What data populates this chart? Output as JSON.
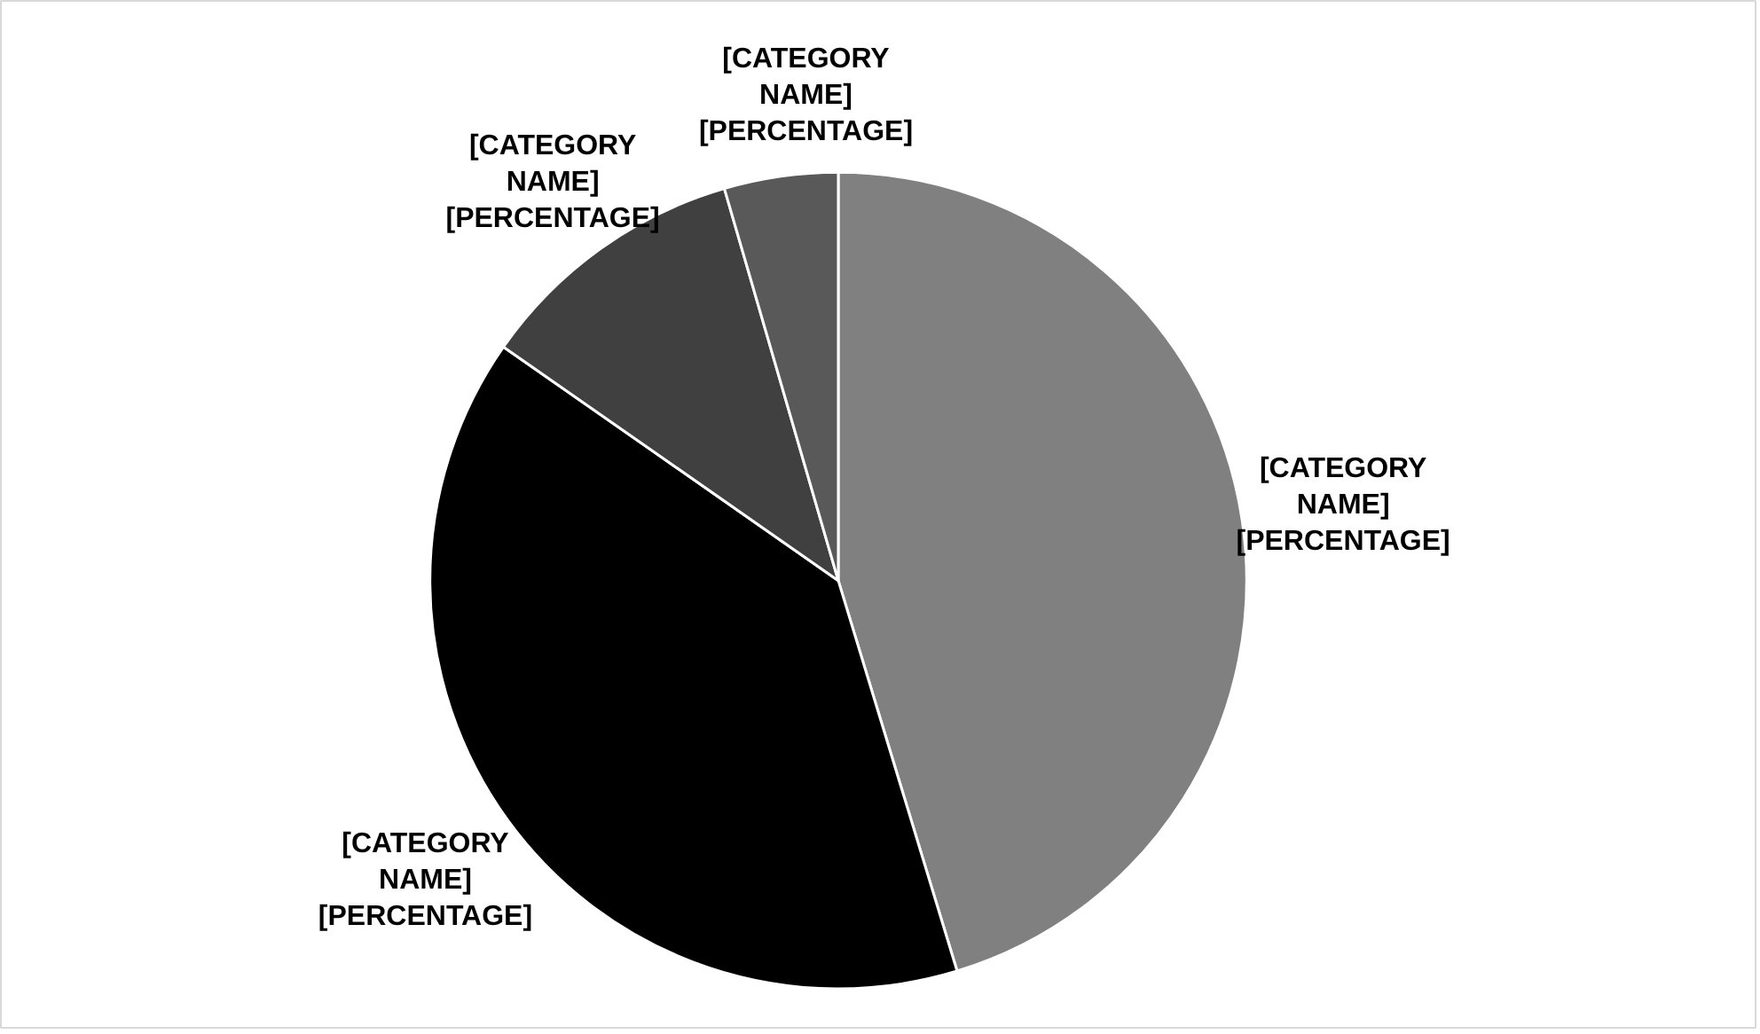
{
  "chart_data": {
    "type": "pie",
    "categories": [
      "[CATEGORY NAME]",
      "[CATEGORY NAME]",
      "[CATEGORY NAME]",
      "[CATEGORY NAME]"
    ],
    "values": [
      45.3,
      39.4,
      10.8,
      4.5
    ],
    "colors": [
      "#808080",
      "#000000",
      "#404040",
      "#595959"
    ],
    "value_labels": [
      "[PERCENTAGE]",
      "[PERCENTAGE]",
      "[PERCENTAGE]",
      "[PERCENTAGE]"
    ],
    "legend": false
  }
}
